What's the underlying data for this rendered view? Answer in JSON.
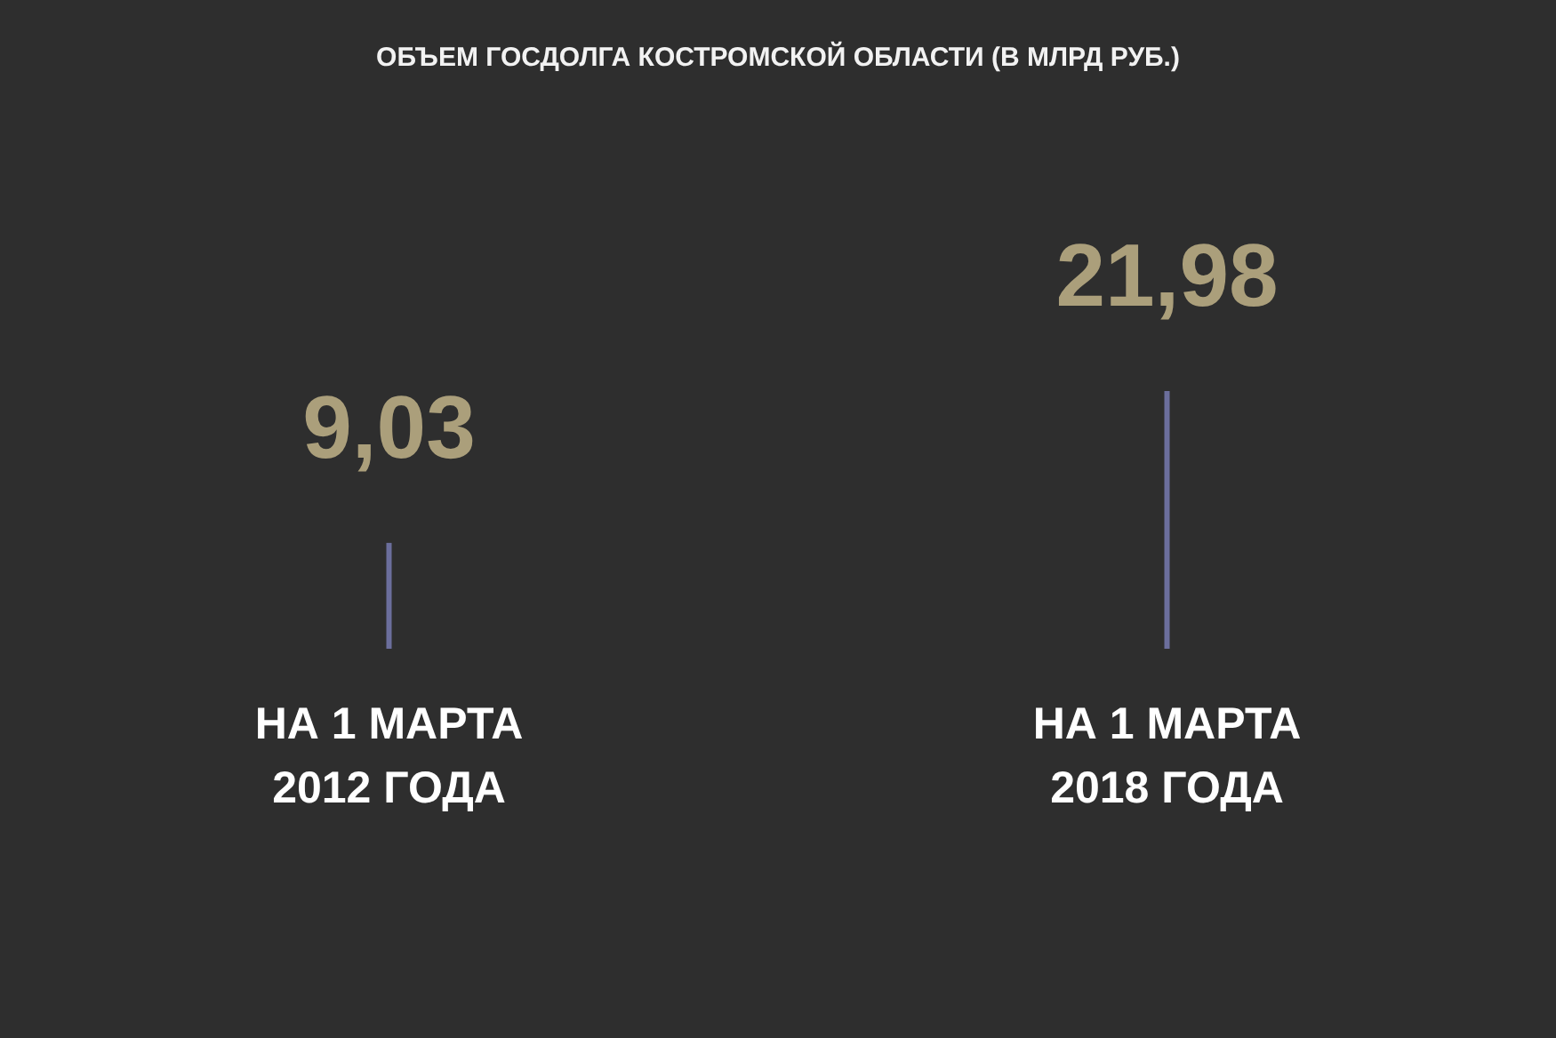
{
  "chart_data": {
    "type": "bar",
    "title": "ОБЪЕМ ГОСДОЛГА КОСТРОМСКОЙ ОБЛАСТИ (В МЛРД РУБ.)",
    "categories": [
      "НА 1 МАРТА 2012 ГОДА",
      "НА 1 МАРТА 2018 ГОДА"
    ],
    "values": [
      9.03,
      21.98
    ],
    "value_labels": [
      "9,03",
      "21,98"
    ],
    "color": "#6b6e9c"
  }
}
